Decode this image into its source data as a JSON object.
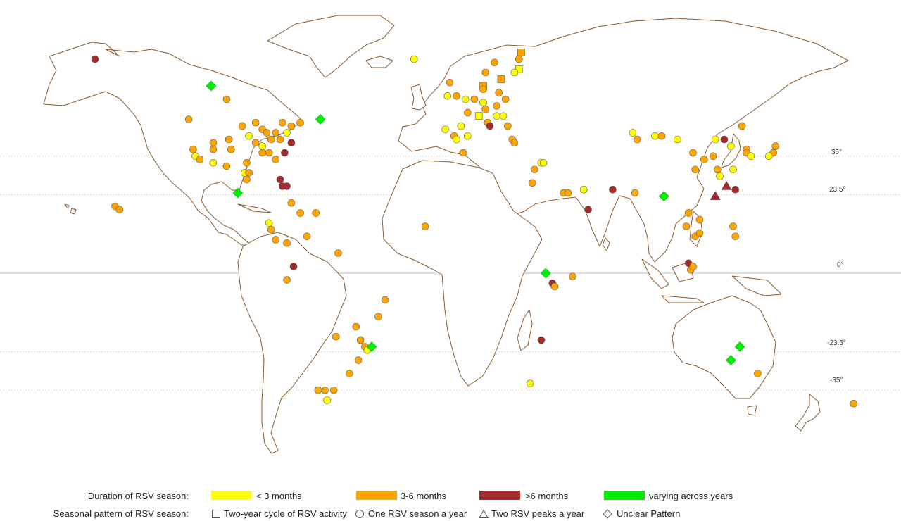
{
  "latitude_labels": [
    "35°",
    "23.5°",
    "0°",
    "-23.5°",
    "-35°"
  ],
  "legend": {
    "duration_title": "Duration of RSV season:",
    "pattern_title": "Seasonal pattern of RSV season:",
    "durations": [
      {
        "key": "lt3",
        "label": "< 3 months",
        "color": "#ffff00"
      },
      {
        "key": "m36",
        "label": "3-6 months",
        "color": "#ffa500"
      },
      {
        "key": "gt6",
        "label": ">6 months",
        "color": "#a52a2a"
      },
      {
        "key": "var",
        "label": "varying across years",
        "color": "#00ee00"
      }
    ],
    "patterns": [
      {
        "key": "square",
        "label": "Two-year cycle of RSV activity",
        "icon": "square-outline-icon"
      },
      {
        "key": "circle",
        "label": "One RSV season a year",
        "icon": "circle-outline-icon"
      },
      {
        "key": "triangle",
        "label": "Two RSV peaks a year",
        "icon": "triangle-outline-icon"
      },
      {
        "key": "diamond",
        "label": "Unclear Pattern",
        "icon": "diamond-outline-icon"
      }
    ]
  },
  "colors": {
    "coast": "#8b5a2b",
    "gridline": "#cccccc",
    "marker_stroke": "#555555"
  },
  "sites": [
    {
      "lon": -165,
      "lat": 64,
      "duration": "gt6",
      "pattern": "circle"
    },
    {
      "lon": -113,
      "lat": 56,
      "duration": "var",
      "pattern": "diamond"
    },
    {
      "lon": -156,
      "lat": 20,
      "duration": "m36",
      "pattern": "circle"
    },
    {
      "lon": -154,
      "lat": 19,
      "duration": "m36",
      "pattern": "circle"
    },
    {
      "lon": -123,
      "lat": 46,
      "duration": "m36",
      "pattern": "circle"
    },
    {
      "lon": -121,
      "lat": 37,
      "duration": "m36",
      "pattern": "circle"
    },
    {
      "lon": -120,
      "lat": 35,
      "duration": "lt3",
      "pattern": "circle"
    },
    {
      "lon": -118,
      "lat": 34,
      "duration": "m36",
      "pattern": "circle"
    },
    {
      "lon": -112,
      "lat": 39,
      "duration": "m36",
      "pattern": "circle"
    },
    {
      "lon": -112,
      "lat": 37,
      "duration": "m36",
      "pattern": "circle"
    },
    {
      "lon": -112,
      "lat": 33,
      "duration": "lt3",
      "pattern": "circle"
    },
    {
      "lon": -105,
      "lat": 40,
      "duration": "m36",
      "pattern": "circle"
    },
    {
      "lon": -104,
      "lat": 37,
      "duration": "m36",
      "pattern": "circle"
    },
    {
      "lon": -106,
      "lat": 32,
      "duration": "m36",
      "pattern": "circle"
    },
    {
      "lon": -97,
      "lat": 33,
      "duration": "m36",
      "pattern": "circle"
    },
    {
      "lon": -98,
      "lat": 30,
      "duration": "lt3",
      "pattern": "circle"
    },
    {
      "lon": -97,
      "lat": 28,
      "duration": "m36",
      "pattern": "circle"
    },
    {
      "lon": -96,
      "lat": 30,
      "duration": "m36",
      "pattern": "circle"
    },
    {
      "lon": -101,
      "lat": 24,
      "duration": "var",
      "pattern": "diamond"
    },
    {
      "lon": -99,
      "lat": 44,
      "duration": "m36",
      "pattern": "circle"
    },
    {
      "lon": -96,
      "lat": 41,
      "duration": "lt3",
      "pattern": "circle"
    },
    {
      "lon": -93,
      "lat": 45,
      "duration": "m36",
      "pattern": "circle"
    },
    {
      "lon": -93,
      "lat": 39,
      "duration": "m36",
      "pattern": "circle"
    },
    {
      "lon": -90,
      "lat": 43,
      "duration": "m36",
      "pattern": "circle"
    },
    {
      "lon": -90,
      "lat": 38,
      "duration": "lt3",
      "pattern": "circle"
    },
    {
      "lon": -90,
      "lat": 36,
      "duration": "m36",
      "pattern": "circle"
    },
    {
      "lon": -88,
      "lat": 42,
      "duration": "m36",
      "pattern": "circle"
    },
    {
      "lon": -87,
      "lat": 36,
      "duration": "m36",
      "pattern": "circle"
    },
    {
      "lon": -86,
      "lat": 40,
      "duration": "m36",
      "pattern": "circle"
    },
    {
      "lon": -84,
      "lat": 42,
      "duration": "m36",
      "pattern": "circle"
    },
    {
      "lon": -84,
      "lat": 34,
      "duration": "m36",
      "pattern": "circle"
    },
    {
      "lon": -82,
      "lat": 40,
      "duration": "m36",
      "pattern": "circle"
    },
    {
      "lon": -81,
      "lat": 45,
      "duration": "m36",
      "pattern": "circle"
    },
    {
      "lon": -80,
      "lat": 36,
      "duration": "gt6",
      "pattern": "circle"
    },
    {
      "lon": -82,
      "lat": 28,
      "duration": "gt6",
      "pattern": "circle"
    },
    {
      "lon": -81,
      "lat": 26,
      "duration": "gt6",
      "pattern": "circle"
    },
    {
      "lon": -79,
      "lat": 26,
      "duration": "gt6",
      "pattern": "circle"
    },
    {
      "lon": -77,
      "lat": 39,
      "duration": "gt6",
      "pattern": "circle"
    },
    {
      "lon": -77,
      "lat": 44,
      "duration": "m36",
      "pattern": "circle"
    },
    {
      "lon": -79,
      "lat": 42,
      "duration": "lt3",
      "pattern": "circle"
    },
    {
      "lon": -73,
      "lat": 45,
      "duration": "m36",
      "pattern": "circle"
    },
    {
      "lon": -64,
      "lat": 46,
      "duration": "var",
      "pattern": "diamond"
    },
    {
      "lon": -106,
      "lat": 52,
      "duration": "m36",
      "pattern": "circle"
    },
    {
      "lon": -87,
      "lat": 15,
      "duration": "lt3",
      "pattern": "circle"
    },
    {
      "lon": -86,
      "lat": 13,
      "duration": "m36",
      "pattern": "circle"
    },
    {
      "lon": -84,
      "lat": 10,
      "duration": "m36",
      "pattern": "circle"
    },
    {
      "lon": -77,
      "lat": 21,
      "duration": "m36",
      "pattern": "circle"
    },
    {
      "lon": -73,
      "lat": 18,
      "duration": "m36",
      "pattern": "circle"
    },
    {
      "lon": -66,
      "lat": 18,
      "duration": "m36",
      "pattern": "circle"
    },
    {
      "lon": -70,
      "lat": 11,
      "duration": "m36",
      "pattern": "circle"
    },
    {
      "lon": -79,
      "lat": 9,
      "duration": "m36",
      "pattern": "circle"
    },
    {
      "lon": -56,
      "lat": 6,
      "duration": "m36",
      "pattern": "circle"
    },
    {
      "lon": -76,
      "lat": 2,
      "duration": "gt6",
      "pattern": "circle"
    },
    {
      "lon": -79,
      "lat": -2,
      "duration": "m36",
      "pattern": "circle"
    },
    {
      "lon": -35,
      "lat": -8,
      "duration": "m36",
      "pattern": "circle"
    },
    {
      "lon": -38,
      "lat": -13,
      "duration": "m36",
      "pattern": "circle"
    },
    {
      "lon": -48,
      "lat": -16,
      "duration": "m36",
      "pattern": "circle"
    },
    {
      "lon": -57,
      "lat": -19,
      "duration": "m36",
      "pattern": "circle"
    },
    {
      "lon": -46,
      "lat": -20,
      "duration": "m36",
      "pattern": "circle"
    },
    {
      "lon": -44,
      "lat": -22,
      "duration": "m36",
      "pattern": "circle"
    },
    {
      "lon": -43,
      "lat": -23,
      "duration": "lt3",
      "pattern": "circle"
    },
    {
      "lon": -41,
      "lat": -22,
      "duration": "var",
      "pattern": "diamond"
    },
    {
      "lon": -47,
      "lat": -26,
      "duration": "m36",
      "pattern": "circle"
    },
    {
      "lon": -51,
      "lat": -30,
      "duration": "m36",
      "pattern": "circle"
    },
    {
      "lon": -58,
      "lat": -35,
      "duration": "m36",
      "pattern": "circle"
    },
    {
      "lon": -62,
      "lat": -35,
      "duration": "m36",
      "pattern": "circle"
    },
    {
      "lon": -65,
      "lat": -35,
      "duration": "m36",
      "pattern": "circle"
    },
    {
      "lon": -61,
      "lat": -38,
      "duration": "lt3",
      "pattern": "circle"
    },
    {
      "lon": -22,
      "lat": 64,
      "duration": "lt3",
      "pattern": "circle"
    },
    {
      "lon": -17,
      "lat": 14,
      "duration": "m36",
      "pattern": "circle"
    },
    {
      "lon": -8,
      "lat": 43,
      "duration": "lt3",
      "pattern": "circle"
    },
    {
      "lon": -4,
      "lat": 41,
      "duration": "m36",
      "pattern": "circle"
    },
    {
      "lon": -3,
      "lat": 40,
      "duration": "lt3",
      "pattern": "circle"
    },
    {
      "lon": 2,
      "lat": 41,
      "duration": "lt3",
      "pattern": "circle"
    },
    {
      "lon": -6,
      "lat": 57,
      "duration": "m36",
      "pattern": "circle"
    },
    {
      "lon": -7,
      "lat": 53,
      "duration": "lt3",
      "pattern": "circle"
    },
    {
      "lon": -3,
      "lat": 53,
      "duration": "m36",
      "pattern": "circle"
    },
    {
      "lon": 1,
      "lat": 52,
      "duration": "lt3",
      "pattern": "circle"
    },
    {
      "lon": 2,
      "lat": 48,
      "duration": "m36",
      "pattern": "circle"
    },
    {
      "lon": -1,
      "lat": 44,
      "duration": "lt3",
      "pattern": "circle"
    },
    {
      "lon": 5,
      "lat": 52,
      "duration": "m36",
      "pattern": "circle"
    },
    {
      "lon": 9,
      "lat": 56,
      "duration": "m36",
      "pattern": "square"
    },
    {
      "lon": 9,
      "lat": 55,
      "duration": "m36",
      "pattern": "circle"
    },
    {
      "lon": 10,
      "lat": 60,
      "duration": "m36",
      "pattern": "circle"
    },
    {
      "lon": 9,
      "lat": 51,
      "duration": "lt3",
      "pattern": "circle"
    },
    {
      "lon": 10,
      "lat": 49,
      "duration": "m36",
      "pattern": "circle"
    },
    {
      "lon": 7,
      "lat": 47,
      "duration": "lt3",
      "pattern": "square"
    },
    {
      "lon": 11,
      "lat": 45,
      "duration": "m36",
      "pattern": "circle"
    },
    {
      "lon": 12,
      "lat": 44,
      "duration": "gt6",
      "pattern": "circle"
    },
    {
      "lon": 15,
      "lat": 47,
      "duration": "lt3",
      "pattern": "circle"
    },
    {
      "lon": 15,
      "lat": 50,
      "duration": "m36",
      "pattern": "circle"
    },
    {
      "lon": 18,
      "lat": 47,
      "duration": "lt3",
      "pattern": "circle"
    },
    {
      "lon": 16,
      "lat": 54,
      "duration": "m36",
      "pattern": "circle"
    },
    {
      "lon": 19,
      "lat": 52,
      "duration": "m36",
      "pattern": "circle"
    },
    {
      "lon": 14,
      "lat": 63,
      "duration": "m36",
      "pattern": "circle"
    },
    {
      "lon": 17,
      "lat": 58,
      "duration": "m36",
      "pattern": "square"
    },
    {
      "lon": 25,
      "lat": 64,
      "duration": "m36",
      "pattern": "circle"
    },
    {
      "lon": 26,
      "lat": 66,
      "duration": "m36",
      "pattern": "square"
    },
    {
      "lon": 25,
      "lat": 61,
      "duration": "lt3",
      "pattern": "square"
    },
    {
      "lon": 23,
      "lat": 60,
      "duration": "lt3",
      "pattern": "circle"
    },
    {
      "lon": 20,
      "lat": 44,
      "duration": "m36",
      "pattern": "circle"
    },
    {
      "lon": 22,
      "lat": 40,
      "duration": "m36",
      "pattern": "circle"
    },
    {
      "lon": 23,
      "lat": 39,
      "duration": "m36",
      "pattern": "circle"
    },
    {
      "lon": 0,
      "lat": 36,
      "duration": "m36",
      "pattern": "circle"
    },
    {
      "lon": 32,
      "lat": 31,
      "duration": "m36",
      "pattern": "circle"
    },
    {
      "lon": 35,
      "lat": 33,
      "duration": "lt3",
      "pattern": "circle"
    },
    {
      "lon": 36,
      "lat": 33,
      "duration": "lt3",
      "pattern": "circle"
    },
    {
      "lon": 31,
      "lat": 27,
      "duration": "m36",
      "pattern": "circle"
    },
    {
      "lon": 45,
      "lat": 24,
      "duration": "m36",
      "pattern": "circle"
    },
    {
      "lon": 47,
      "lat": 24,
      "duration": "m36",
      "pattern": "circle"
    },
    {
      "lon": 54,
      "lat": 25,
      "duration": "lt3",
      "pattern": "circle"
    },
    {
      "lon": 56,
      "lat": 19,
      "duration": "gt6",
      "pattern": "circle"
    },
    {
      "lon": 67,
      "lat": 25,
      "duration": "gt6",
      "pattern": "circle"
    },
    {
      "lon": 77,
      "lat": 24,
      "duration": "m36",
      "pattern": "circle"
    },
    {
      "lon": 90,
      "lat": 23,
      "duration": "var",
      "pattern": "diamond"
    },
    {
      "lon": 37,
      "lat": 0,
      "duration": "var",
      "pattern": "diamond"
    },
    {
      "lon": 40,
      "lat": -3,
      "duration": "gt6",
      "pattern": "circle"
    },
    {
      "lon": 41,
      "lat": -4,
      "duration": "m36",
      "pattern": "circle"
    },
    {
      "lon": 49,
      "lat": -1,
      "duration": "m36",
      "pattern": "circle"
    },
    {
      "lon": 35,
      "lat": -20,
      "duration": "gt6",
      "pattern": "circle"
    },
    {
      "lon": 30,
      "lat": -33,
      "duration": "lt3",
      "pattern": "circle"
    },
    {
      "lon": 76,
      "lat": 42,
      "duration": "lt3",
      "pattern": "circle"
    },
    {
      "lon": 78,
      "lat": 40,
      "duration": "m36",
      "pattern": "circle"
    },
    {
      "lon": 86,
      "lat": 41,
      "duration": "lt3",
      "pattern": "circle"
    },
    {
      "lon": 89,
      "lat": 41,
      "duration": "m36",
      "pattern": "circle"
    },
    {
      "lon": 96,
      "lat": 40,
      "duration": "lt3",
      "pattern": "circle"
    },
    {
      "lon": 103,
      "lat": 36,
      "duration": "m36",
      "pattern": "circle"
    },
    {
      "lon": 104,
      "lat": 31,
      "duration": "m36",
      "pattern": "circle"
    },
    {
      "lon": 108,
      "lat": 34,
      "duration": "m36",
      "pattern": "circle"
    },
    {
      "lon": 112,
      "lat": 35,
      "duration": "m36",
      "pattern": "circle"
    },
    {
      "lon": 113,
      "lat": 40,
      "duration": "lt3",
      "pattern": "circle"
    },
    {
      "lon": 114,
      "lat": 31,
      "duration": "m36",
      "pattern": "circle"
    },
    {
      "lon": 115,
      "lat": 29,
      "duration": "lt3",
      "pattern": "circle"
    },
    {
      "lon": 117,
      "lat": 40,
      "duration": "gt6",
      "pattern": "circle"
    },
    {
      "lon": 120,
      "lat": 38,
      "duration": "lt3",
      "pattern": "circle"
    },
    {
      "lon": 121,
      "lat": 31,
      "duration": "lt3",
      "pattern": "circle"
    },
    {
      "lon": 118,
      "lat": 26,
      "duration": "gt6",
      "pattern": "triangle"
    },
    {
      "lon": 113,
      "lat": 23,
      "duration": "gt6",
      "pattern": "triangle"
    },
    {
      "lon": 122,
      "lat": 25,
      "duration": "gt6",
      "pattern": "circle"
    },
    {
      "lon": 125,
      "lat": 44,
      "duration": "m36",
      "pattern": "circle"
    },
    {
      "lon": 127,
      "lat": 37,
      "duration": "m36",
      "pattern": "circle"
    },
    {
      "lon": 127,
      "lat": 36,
      "duration": "m36",
      "pattern": "circle"
    },
    {
      "lon": 129,
      "lat": 35,
      "duration": "lt3",
      "pattern": "circle"
    },
    {
      "lon": 139,
      "lat": 36,
      "duration": "m36",
      "pattern": "circle"
    },
    {
      "lon": 140,
      "lat": 38,
      "duration": "m36",
      "pattern": "circle"
    },
    {
      "lon": 137,
      "lat": 35,
      "duration": "lt3",
      "pattern": "circle"
    },
    {
      "lon": 100,
      "lat": 14,
      "duration": "m36",
      "pattern": "circle"
    },
    {
      "lon": 101,
      "lat": 18,
      "duration": "m36",
      "pattern": "circle"
    },
    {
      "lon": 104,
      "lat": 11,
      "duration": "m36",
      "pattern": "circle"
    },
    {
      "lon": 106,
      "lat": 12,
      "duration": "m36",
      "pattern": "circle"
    },
    {
      "lon": 106,
      "lat": 16,
      "duration": "m36",
      "pattern": "circle"
    },
    {
      "lon": 121,
      "lat": 14,
      "duration": "m36",
      "pattern": "circle"
    },
    {
      "lon": 122,
      "lat": 11,
      "duration": "m36",
      "pattern": "circle"
    },
    {
      "lon": 101,
      "lat": 3,
      "duration": "gt6",
      "pattern": "circle"
    },
    {
      "lon": 102,
      "lat": 1,
      "duration": "m36",
      "pattern": "circle"
    },
    {
      "lon": 103,
      "lat": 2,
      "duration": "m36",
      "pattern": "circle"
    },
    {
      "lon": 124,
      "lat": -22,
      "duration": "var",
      "pattern": "diamond"
    },
    {
      "lon": 120,
      "lat": -26,
      "duration": "var",
      "pattern": "diamond"
    },
    {
      "lon": 132,
      "lat": -30,
      "duration": "m36",
      "pattern": "circle"
    },
    {
      "lon": 175,
      "lat": -39,
      "duration": "m36",
      "pattern": "circle"
    }
  ]
}
